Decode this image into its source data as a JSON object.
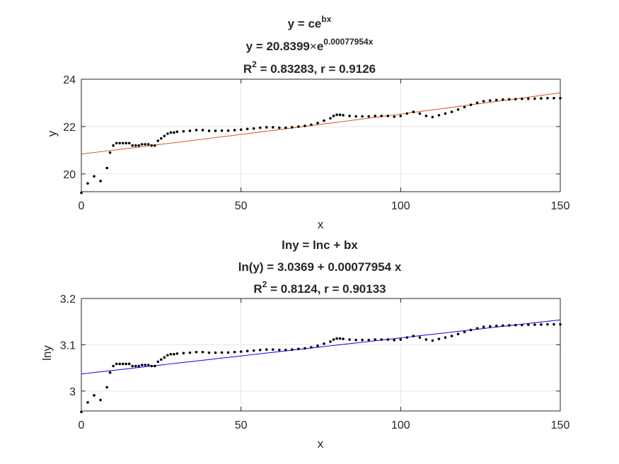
{
  "chart_data": [
    {
      "type": "scatter",
      "title": {
        "line1_base": "y = ce",
        "line1_sup": "bx",
        "line2_base": "y = 20.8399",
        "line2_times": "×",
        "line2_e": "e",
        "line2_sup": "0.00077954x",
        "line3_R": "R",
        "line3_sup": "2",
        "line3_rest": " = 0.83283, r = 0.9126"
      },
      "xlabel": "x",
      "ylabel": "y",
      "xlim": [
        0,
        150
      ],
      "ylim": [
        19.25,
        24
      ],
      "xticks": [
        0,
        50,
        100,
        150
      ],
      "yticks": [
        20,
        22,
        24
      ],
      "grid": true,
      "fit": {
        "model": "exp",
        "c": 20.8399,
        "b": 0.00077954,
        "color": "#d95319"
      },
      "series": [
        {
          "marker_color": "#000000",
          "x": [
            0,
            2,
            4,
            6,
            8,
            9,
            10,
            11,
            12,
            13,
            14,
            15,
            16,
            17,
            18,
            19,
            20,
            21,
            22,
            23,
            24,
            25,
            26,
            27,
            28,
            29,
            30,
            32,
            34,
            36,
            38,
            40,
            42,
            44,
            46,
            48,
            50,
            52,
            54,
            56,
            58,
            60,
            62,
            64,
            66,
            68,
            70,
            72,
            74,
            76,
            78,
            79,
            80,
            81,
            82,
            84,
            86,
            88,
            90,
            92,
            94,
            96,
            98,
            100,
            102,
            104,
            106,
            108,
            110,
            112,
            114,
            116,
            118,
            120,
            122,
            124,
            126,
            128,
            130,
            132,
            134,
            136,
            138,
            140,
            142,
            144,
            146,
            148,
            150
          ],
          "y": [
            19.2,
            19.6,
            19.9,
            19.7,
            20.25,
            20.9,
            21.2,
            21.3,
            21.3,
            21.3,
            21.3,
            21.3,
            21.2,
            21.2,
            21.2,
            21.25,
            21.25,
            21.25,
            21.2,
            21.2,
            21.4,
            21.5,
            21.6,
            21.7,
            21.75,
            21.75,
            21.78,
            21.8,
            21.82,
            21.85,
            21.85,
            21.82,
            21.82,
            21.83,
            21.83,
            21.85,
            21.87,
            21.9,
            21.92,
            21.95,
            21.97,
            21.97,
            21.95,
            21.95,
            21.97,
            22.0,
            22.03,
            22.08,
            22.15,
            22.25,
            22.35,
            22.45,
            22.5,
            22.5,
            22.48,
            22.45,
            22.43,
            22.43,
            22.43,
            22.45,
            22.45,
            22.45,
            22.42,
            22.45,
            22.55,
            22.62,
            22.55,
            22.45,
            22.4,
            22.48,
            22.55,
            22.62,
            22.72,
            22.82,
            22.92,
            23.0,
            23.07,
            23.1,
            23.12,
            23.14,
            23.15,
            23.16,
            23.17,
            23.18,
            23.18,
            23.19,
            23.2,
            23.2,
            23.2
          ]
        }
      ]
    },
    {
      "type": "scatter",
      "title": {
        "line1": "lny = lnc + bx",
        "line2": "ln(y) = 3.0369 + 0.00077954 x",
        "line3_R": "R",
        "line3_sup": "2",
        "line3_rest": " = 0.8124, r = 0.90133"
      },
      "xlabel": "x",
      "ylabel": "lny",
      "xlim": [
        0,
        150
      ],
      "ylim": [
        2.957,
        3.2
      ],
      "xticks": [
        0,
        50,
        100,
        150
      ],
      "yticks": [
        3,
        3.1,
        3.2
      ],
      "grid": true,
      "fit": {
        "model": "linear",
        "intercept": 3.0369,
        "slope": 0.00077954,
        "color": "#0000ff"
      },
      "series": [
        {
          "marker_color": "#000000",
          "log_of_series": 0
        }
      ]
    }
  ]
}
